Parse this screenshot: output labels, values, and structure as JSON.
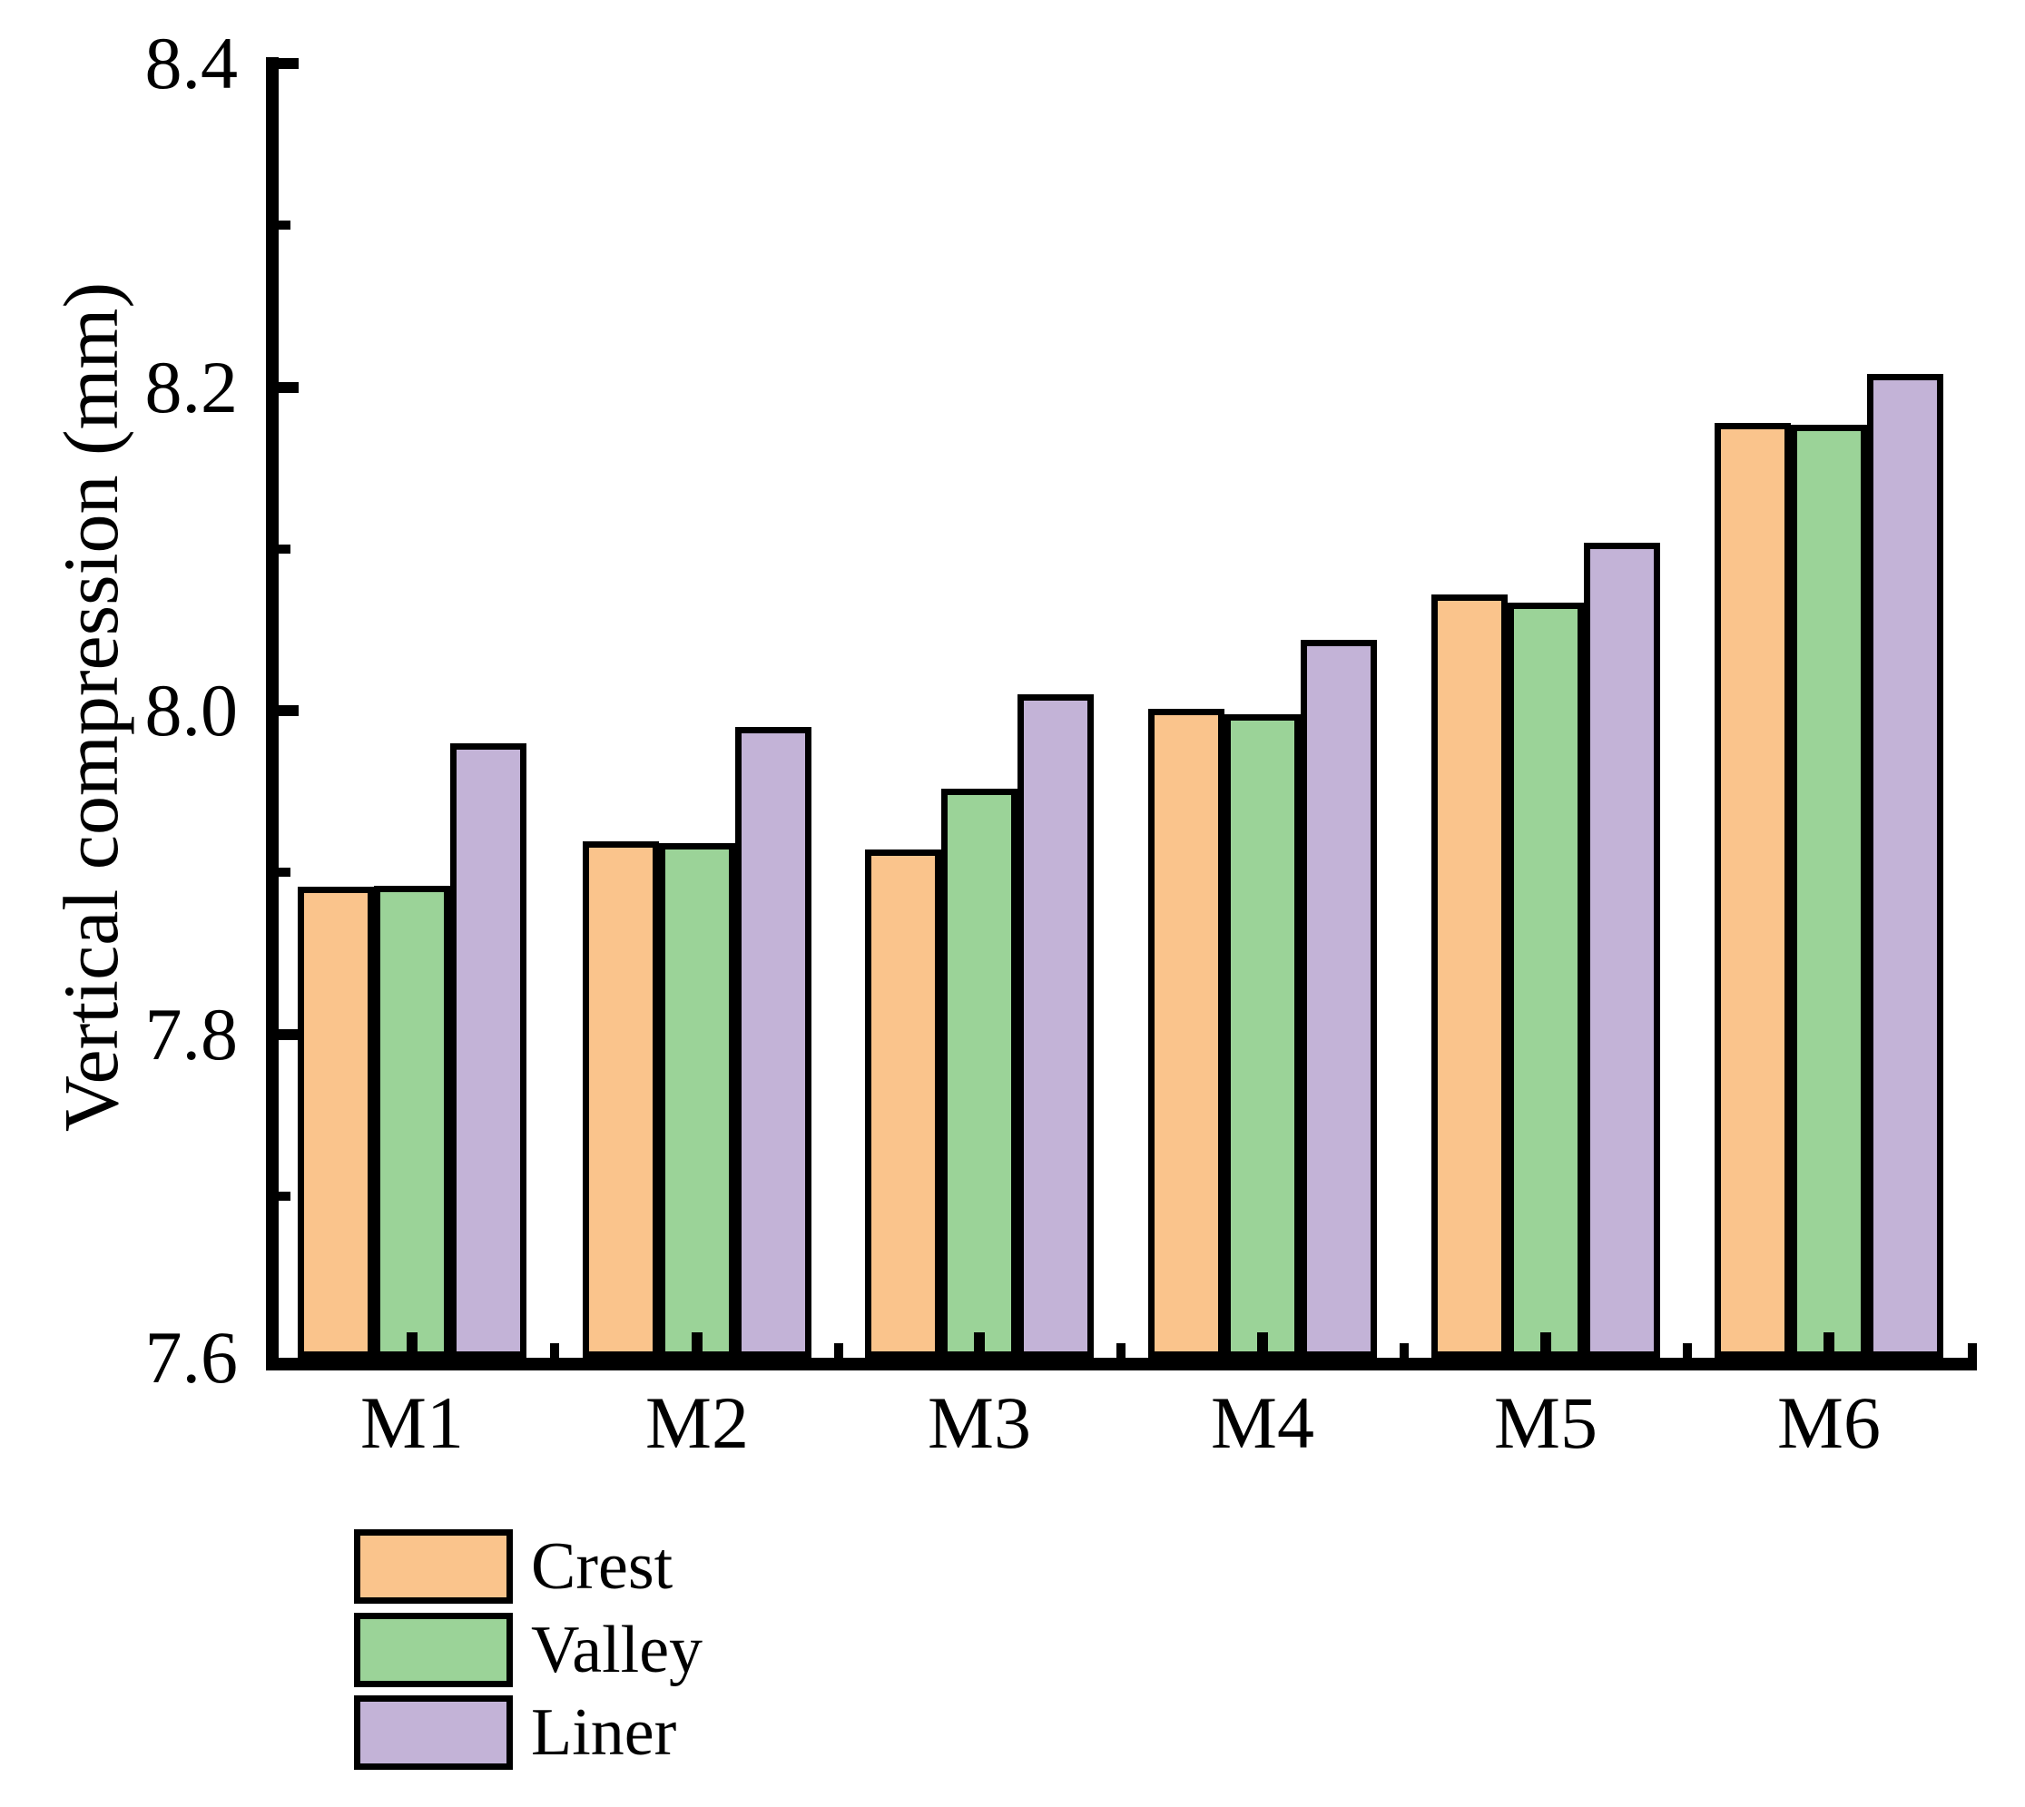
{
  "chart_data": {
    "type": "bar",
    "title": "",
    "xlabel": "",
    "ylabel": "Vertical compression (mm)",
    "categories": [
      "M1",
      "M2",
      "M3",
      "M4",
      "M5",
      "M6"
    ],
    "series": [
      {
        "name": "Crest",
        "color": "#FAC48C",
        "values": [
          7.891,
          7.919,
          7.914,
          8.001,
          8.072,
          8.178
        ]
      },
      {
        "name": "Valley",
        "color": "#9BD398",
        "values": [
          7.892,
          7.918,
          7.952,
          7.998,
          8.067,
          8.177
        ]
      },
      {
        "name": "Liner",
        "color": "#C3B3D7",
        "values": [
          7.98,
          7.99,
          8.01,
          8.044,
          8.104,
          8.208
        ]
      }
    ],
    "ylim": [
      7.6,
      8.4
    ],
    "y_major_ticks": [
      8.4,
      8.2,
      8.0,
      7.8,
      7.6
    ],
    "y_tick_labels": [
      "8.4",
      "8.2",
      "8.0",
      "7.8",
      "7.6"
    ],
    "y_minor_ticks": [
      8.3,
      8.1,
      7.9,
      7.7
    ],
    "grid": false,
    "legend_position": "bottom-left",
    "bar_outline_color": "#000000",
    "axis_color": "#000000",
    "background_color": "#FFFFFF"
  }
}
